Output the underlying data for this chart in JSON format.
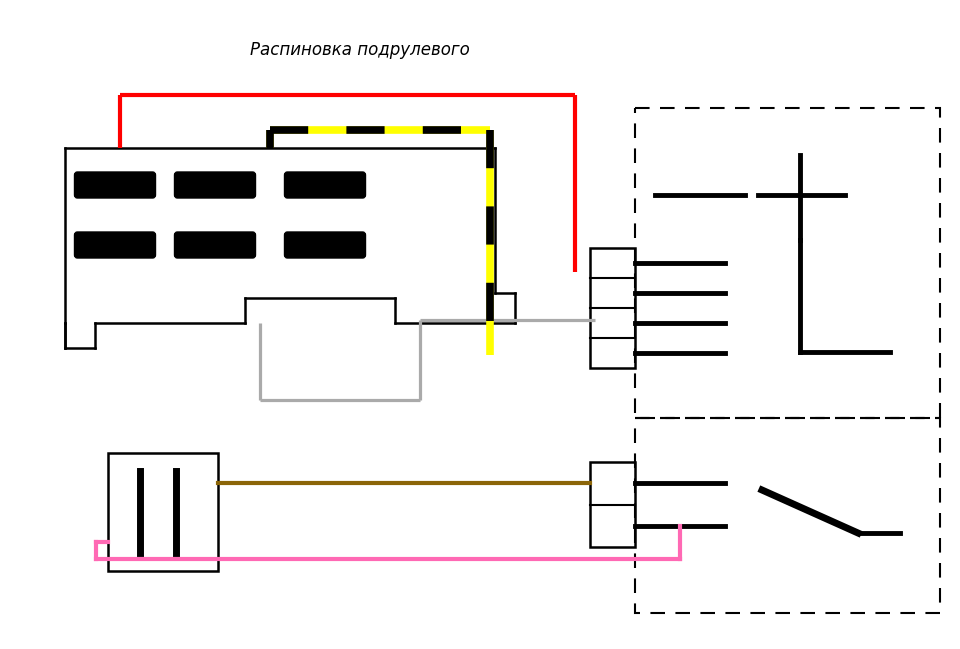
{
  "title": "Распиновка подрулевого",
  "bg_color": "#ffffff",
  "title_fontsize": 12,
  "fig_width": 9.6,
  "fig_height": 6.49
}
